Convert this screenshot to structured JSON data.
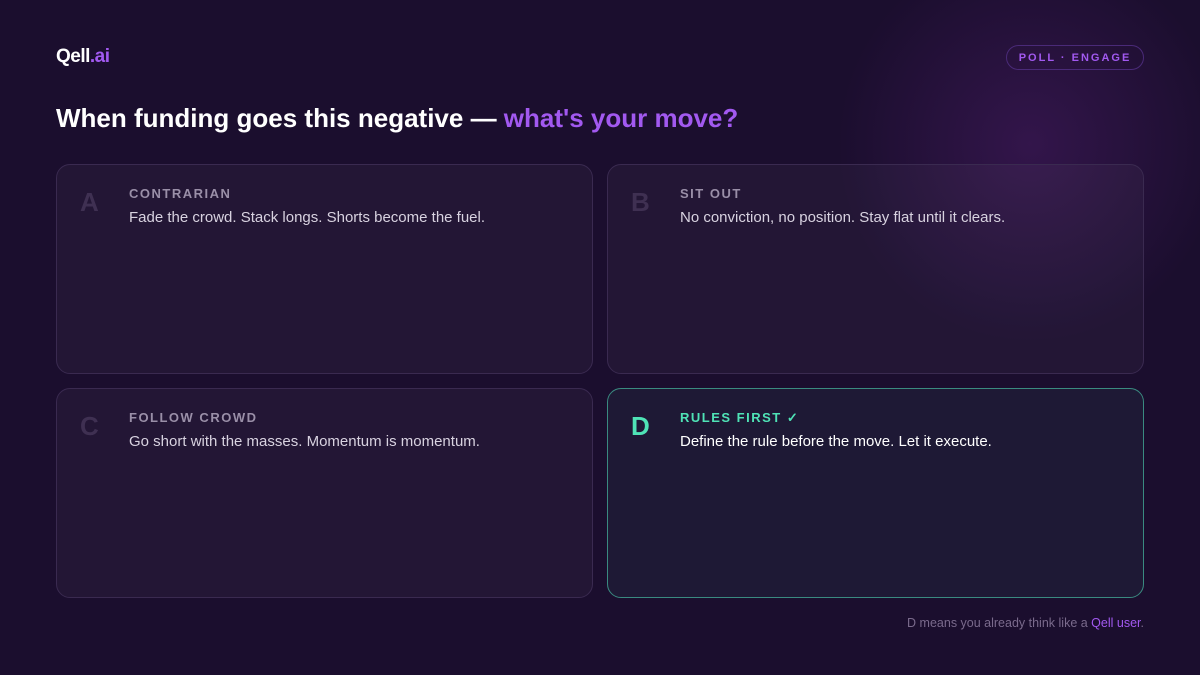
{
  "brand": {
    "logo_main": "Qell",
    "logo_suffix": ".ai"
  },
  "badge": "POLL · ENGAGE",
  "heading": {
    "main": "When funding goes this negative — ",
    "highlight": "what's your move?"
  },
  "options": [
    {
      "letter": "A",
      "title": "CONTRARIAN",
      "desc": "Fade the crowd. Stack longs. Shorts become the fuel."
    },
    {
      "letter": "B",
      "title": "SIT OUT",
      "desc": "No conviction, no position. Stay flat until it clears."
    },
    {
      "letter": "C",
      "title": "FOLLOW CROWD",
      "desc": "Go short with the masses. Momentum is momentum."
    },
    {
      "letter": "D",
      "title": "RULES FIRST ✓",
      "desc": "Define the rule before the move. Let it execute.",
      "selected": true
    }
  ],
  "footer": {
    "text": "D means you already think like a ",
    "link": "Qell user",
    "end": "."
  },
  "colors": {
    "accent": "#a259f0",
    "correct": "#4fe3b6",
    "background": "#1b0e2e"
  }
}
